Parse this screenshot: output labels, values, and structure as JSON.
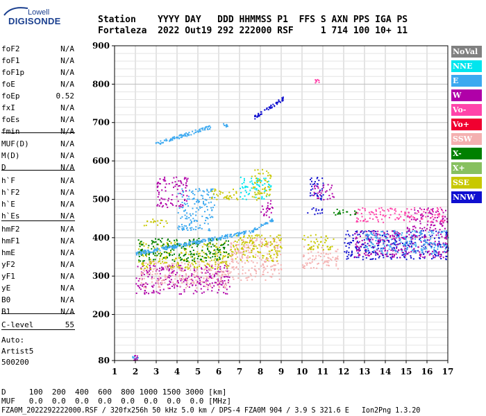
{
  "logo": {
    "top": "Lowell",
    "main": "DIGISONDE"
  },
  "header": {
    "row1": "Station    YYYY DAY   DDD HHMMSS P1  FFS S AXN PPS IGA PS",
    "row2": "Fortaleza  2022 Out19 292 222000 RSF     1 714 100 10+ 11"
  },
  "params": [
    {
      "label": "foF2",
      "value": "N/A"
    },
    {
      "label": "foF1",
      "value": "N/A"
    },
    {
      "label": "foF1p",
      "value": "N/A"
    },
    {
      "label": "foE",
      "value": "N/A"
    },
    {
      "label": "foEp",
      "value": "0.52"
    },
    {
      "label": "fxI",
      "value": "N/A"
    },
    {
      "label": "foEs",
      "value": "N/A"
    },
    {
      "label": "fmin",
      "value": "N/A"
    },
    {
      "label": "MUF(D)",
      "value": "N/A"
    },
    {
      "label": "M(D)",
      "value": "N/A"
    },
    {
      "label": "D",
      "value": "N/A"
    },
    {
      "label": "h`F",
      "value": "N/A"
    },
    {
      "label": "h`F2",
      "value": "N/A"
    },
    {
      "label": "h`E",
      "value": "N/A"
    },
    {
      "label": "h`Es",
      "value": "N/A"
    },
    {
      "label": "hmF2",
      "value": "N/A"
    },
    {
      "label": "hmF1",
      "value": "N/A"
    },
    {
      "label": "hmE",
      "value": "N/A"
    },
    {
      "label": "yF2",
      "value": "N/A"
    },
    {
      "label": "yF1",
      "value": "N/A"
    },
    {
      "label": "yE",
      "value": "N/A"
    },
    {
      "label": "B0",
      "value": "N/A"
    },
    {
      "label": "B1",
      "value": "N/A"
    },
    {
      "label": "C-level",
      "value": "55"
    }
  ],
  "auto": {
    "line1": "Auto:",
    "line2": "Artist5",
    "line3": "500200"
  },
  "footer": {
    "d_line": "D     100  200  400  600  800 1000 1500 3000 [km]",
    "muf_line": "MUF   0.0  0.0  0.0  0.0  0.0  0.0  0.0  0.0 [MHz]",
    "file_line": "FZA0M_2022292222000.RSF / 320fx256h 50 kHz 5.0 km / DPS-4 FZA0M 904 / 3.9 S 321.6 E   Ion2Png 1.3.20"
  },
  "legend": [
    {
      "label": "NoVal",
      "color": "#808080"
    },
    {
      "label": "NNE",
      "color": "#00e5ee"
    },
    {
      "label": "E",
      "color": "#3ca9f0"
    },
    {
      "label": "W",
      "color": "#b000a8"
    },
    {
      "label": "Vo-",
      "color": "#ff44aa"
    },
    {
      "label": "Vo+",
      "color": "#f00030"
    },
    {
      "label": "SSW",
      "color": "#f4b0b0"
    },
    {
      "label": "X-",
      "color": "#008000"
    },
    {
      "label": "X+",
      "color": "#88c060"
    },
    {
      "label": "SSE",
      "color": "#c8c800"
    },
    {
      "label": "NNW",
      "color": "#1010d0"
    }
  ],
  "chart_data": {
    "type": "scatter",
    "xlim": [
      1,
      17
    ],
    "ylim": [
      80,
      900
    ],
    "x_ticks": [
      1,
      2,
      3,
      4,
      5,
      6,
      7,
      8,
      9,
      10,
      11,
      12,
      13,
      14,
      15,
      16,
      17
    ],
    "y_ticks": [
      80,
      200,
      300,
      400,
      500,
      600,
      700,
      800,
      900
    ],
    "grid": true,
    "legend_position": "right",
    "clusters": [
      {
        "x": [
          1.8,
          2.1
        ],
        "y": [
          82,
          95
        ],
        "color": "#3ca9f0"
      },
      {
        "x": [
          1.9,
          2.1
        ],
        "y": [
          82,
          95
        ],
        "color": "#b000a8"
      },
      {
        "x": [
          2.9,
          5.6
        ],
        "y": [
          645,
          690
        ],
        "color": "#3ca9f0",
        "trend": "diagonal"
      },
      {
        "x": [
          6.2,
          6.4
        ],
        "y": [
          690,
          700
        ],
        "color": "#3ca9f0"
      },
      {
        "x": [
          7.7,
          9.1
        ],
        "y": [
          715,
          765
        ],
        "color": "#1010d0",
        "trend": "diagonal"
      },
      {
        "x": [
          10.6,
          10.8
        ],
        "y": [
          805,
          815
        ],
        "color": "#ff44aa"
      },
      {
        "x": [
          2.0,
          6.5
        ],
        "y": [
          255,
          330
        ],
        "color": "#b000a8"
      },
      {
        "x": [
          2.2,
          6.5
        ],
        "y": [
          270,
          340
        ],
        "color": "#f4b0b0"
      },
      {
        "x": [
          2.1,
          6.5
        ],
        "y": [
          320,
          390
        ],
        "color": "#c8c800"
      },
      {
        "x": [
          2.1,
          6.5
        ],
        "y": [
          340,
          400
        ],
        "color": "#008000"
      },
      {
        "x": [
          2.0,
          7.3
        ],
        "y": [
          360,
          415
        ],
        "color": "#3ca9f0",
        "trend": "diagonal"
      },
      {
        "x": [
          7.3,
          8.6
        ],
        "y": [
          410,
          450
        ],
        "color": "#3ca9f0",
        "trend": "diagonal"
      },
      {
        "x": [
          3.0,
          4.5
        ],
        "y": [
          480,
          560
        ],
        "color": "#b000a8"
      },
      {
        "x": [
          2.3,
          3.5
        ],
        "y": [
          430,
          450
        ],
        "color": "#c8c800"
      },
      {
        "x": [
          4.0,
          5.8
        ],
        "y": [
          420,
          530
        ],
        "color": "#3ca9f0"
      },
      {
        "x": [
          5.5,
          7.0
        ],
        "y": [
          500,
          530
        ],
        "color": "#c8c800"
      },
      {
        "x": [
          6.5,
          9.0
        ],
        "y": [
          290,
          400
        ],
        "color": "#f4b0b0"
      },
      {
        "x": [
          6.5,
          9.0
        ],
        "y": [
          340,
          410
        ],
        "color": "#c8c800"
      },
      {
        "x": [
          7.0,
          8.5
        ],
        "y": [
          500,
          560
        ],
        "color": "#00e5ee"
      },
      {
        "x": [
          7.5,
          8.5
        ],
        "y": [
          500,
          580
        ],
        "color": "#c8c800"
      },
      {
        "x": [
          8.0,
          8.6
        ],
        "y": [
          450,
          500
        ],
        "color": "#b000a8"
      },
      {
        "x": [
          10.0,
          11.7
        ],
        "y": [
          320,
          380
        ],
        "color": "#f4b0b0"
      },
      {
        "x": [
          10.0,
          11.5
        ],
        "y": [
          370,
          410
        ],
        "color": "#c8c800"
      },
      {
        "x": [
          10.2,
          11.0
        ],
        "y": [
          500,
          560
        ],
        "color": "#1010d0"
      },
      {
        "x": [
          10.2,
          11.0
        ],
        "y": [
          460,
          480
        ],
        "color": "#1010d0"
      },
      {
        "x": [
          10.5,
          11.5
        ],
        "y": [
          500,
          540
        ],
        "color": "#b000a8"
      },
      {
        "x": [
          12.0,
          17.0
        ],
        "y": [
          345,
          420
        ],
        "color": "#1010d0"
      },
      {
        "x": [
          12.5,
          17.0
        ],
        "y": [
          350,
          420
        ],
        "color": "#b000a8"
      },
      {
        "x": [
          13.0,
          17.0
        ],
        "y": [
          360,
          420
        ],
        "color": "#3ca9f0"
      },
      {
        "x": [
          15.0,
          17.0
        ],
        "y": [
          420,
          480
        ],
        "color": "#b000a8"
      },
      {
        "x": [
          12.5,
          16.8
        ],
        "y": [
          440,
          480
        ],
        "color": "#ff44aa"
      },
      {
        "x": [
          11.5,
          12.8
        ],
        "y": [
          460,
          480
        ],
        "color": "#008000"
      }
    ]
  }
}
